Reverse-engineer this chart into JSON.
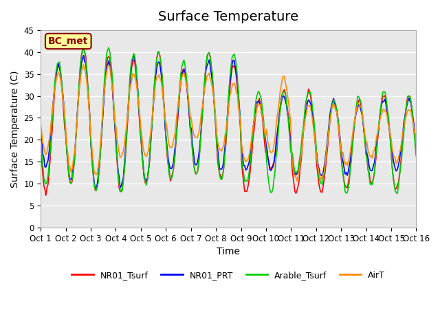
{
  "title": "Surface Temperature",
  "xlabel": "Time",
  "ylabel": "Surface Temperature (C)",
  "ylim": [
    0,
    45
  ],
  "yticks": [
    0,
    5,
    10,
    15,
    20,
    25,
    30,
    35,
    40,
    45
  ],
  "xlim": [
    0,
    15
  ],
  "xtick_labels": [
    "Oct 1",
    "Oct 2",
    "Oct 3",
    "Oct 4",
    "Oct 5",
    "Oct 6",
    "Oct 7",
    "Oct 8",
    "Oct 9",
    "Oct 10",
    "Oct 11",
    "Oct 12",
    "Oct 13",
    "Oct 14",
    "Oct 15",
    "Oct 16"
  ],
  "annotation_text": "BC_met",
  "annotation_bg": "#FFFF99",
  "annotation_border": "#8B0000",
  "legend_entries": [
    "NR01_Tsurf",
    "NR01_PRT",
    "Arable_Tsurf",
    "AirT"
  ],
  "line_colors": [
    "#FF0000",
    "#0000FF",
    "#00CC00",
    "#FF8C00"
  ],
  "bg_color": "#E8E8E8",
  "grid_color": "#FFFFFF",
  "title_fontsize": 14,
  "label_fontsize": 10
}
